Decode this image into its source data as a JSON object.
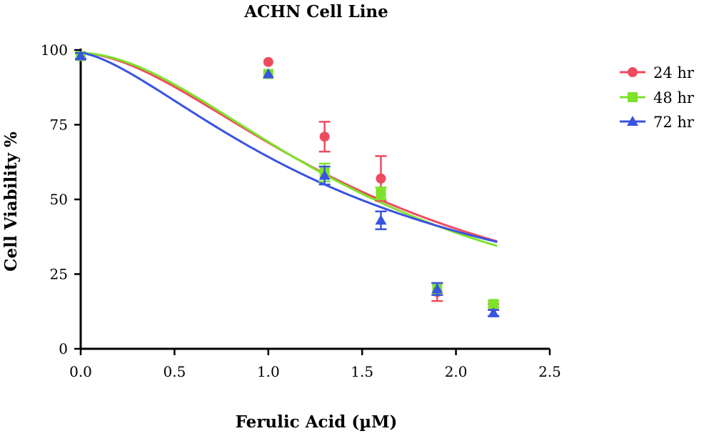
{
  "chart_data": {
    "type": "scatter",
    "title": "ACHN Cell Line",
    "xlabel": "Ferulic Acid (µM)",
    "ylabel": "Cell Viability %",
    "xlim": [
      0,
      2.5
    ],
    "ylim": [
      0,
      100
    ],
    "x_ticks": [
      "0.0",
      "0.5",
      "1.0",
      "1.5",
      "2.0",
      "2.5"
    ],
    "y_ticks": [
      "0",
      "25",
      "50",
      "75",
      "100"
    ],
    "grid": false,
    "legend_position": "right",
    "fit": "sigmoidal dose-response curve per series",
    "series": [
      {
        "name": "24 hr",
        "color": "#ee4b5e",
        "marker": "circle",
        "points": [
          {
            "x": 0.0,
            "y": 98,
            "err": 1
          },
          {
            "x": 1.0,
            "y": 96,
            "err": 0
          },
          {
            "x": 1.3,
            "y": 71,
            "err": 5
          },
          {
            "x": 1.6,
            "y": 57,
            "err": 7.5
          },
          {
            "x": 1.9,
            "y": 19,
            "err": 3
          },
          {
            "x": 2.2,
            "y": 14,
            "err": 1
          }
        ],
        "fit": {
          "top": 99,
          "bottom": 0,
          "ec50": 1.61,
          "hill": 1.75
        }
      },
      {
        "name": "48 hr",
        "color": "#7ee22a",
        "marker": "square",
        "points": [
          {
            "x": 0.0,
            "y": 98,
            "err": 1
          },
          {
            "x": 1.0,
            "y": 92,
            "err": 0
          },
          {
            "x": 1.3,
            "y": 59,
            "err": 3
          },
          {
            "x": 1.6,
            "y": 52,
            "err": 2
          },
          {
            "x": 1.9,
            "y": 20,
            "err": 2
          },
          {
            "x": 2.2,
            "y": 15,
            "err": 1
          }
        ],
        "fit": {
          "top": 99,
          "bottom": 0,
          "ec50": 1.58,
          "hill": 1.85
        }
      },
      {
        "name": "72 hr",
        "color": "#3a53e0",
        "marker": "triangle",
        "points": [
          {
            "x": 0.0,
            "y": 98,
            "err": 1
          },
          {
            "x": 1.0,
            "y": 92,
            "err": 0
          },
          {
            "x": 1.3,
            "y": 58,
            "err": 3
          },
          {
            "x": 1.6,
            "y": 43,
            "err": 3
          },
          {
            "x": 1.9,
            "y": 20,
            "err": 2
          },
          {
            "x": 2.2,
            "y": 12,
            "err": 1
          }
        ],
        "fit": {
          "top": 99,
          "bottom": 1,
          "ec50": 1.49,
          "hill": 1.5
        }
      }
    ]
  }
}
